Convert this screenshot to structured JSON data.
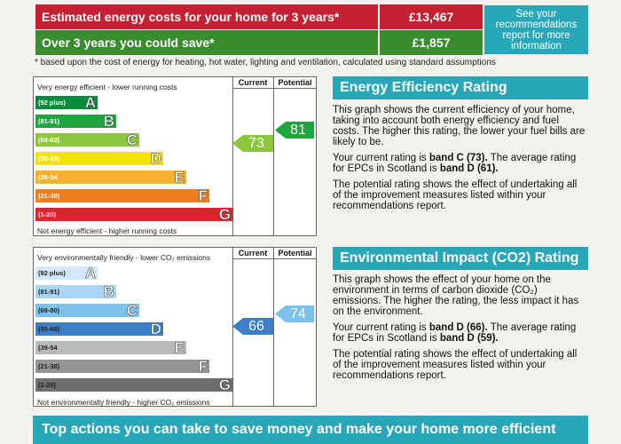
{
  "top": {
    "estimated_label": "Estimated energy costs for your home for 3 years*",
    "estimated_value": "£13,467",
    "save_label": "Over 3 years you could save*",
    "save_value": "£1,857",
    "see_recommendations": "See your recommendations report for more information",
    "footnote": "* based upon the cost of energy for heating, hot water, lighting and ventilation, calculated using standard assumptions"
  },
  "energy": {
    "top_caption": "Very energy efficient - lower running costs",
    "bottom_caption": "Not energy efficient - higher running costs",
    "col_current": "Current",
    "col_potential": "Potential",
    "bands": [
      {
        "range": "(92 plus)",
        "letter": "A",
        "color": "#0a8a3b"
      },
      {
        "range": "(81-91)",
        "letter": "B",
        "color": "#1ea53e"
      },
      {
        "range": "(69-80)",
        "letter": "C",
        "color": "#8dc63f"
      },
      {
        "range": "(55-68)",
        "letter": "D",
        "color": "#f3e400"
      },
      {
        "range": "(39-54",
        "letter": "E",
        "color": "#f6b030"
      },
      {
        "range": "(21-38)",
        "letter": "F",
        "color": "#ef7d22"
      },
      {
        "range": "(1-20)",
        "letter": "G",
        "color": "#e0232d"
      }
    ],
    "current": "73",
    "current_color": "#8dc63f",
    "potential": "81",
    "potential_color": "#1ea53e"
  },
  "environment": {
    "top_caption": "Very environmentally friendly - lower CO₂ emissions",
    "bottom_caption": "Not environmentally friendly - higher CO₂ emissions",
    "col_current": "Current",
    "col_potential": "Potential",
    "bands": [
      {
        "range": "(92 plus)",
        "letter": "A",
        "color": "#d2e8f8"
      },
      {
        "range": "(81-91)",
        "letter": "B",
        "color": "#a9d6f4"
      },
      {
        "range": "(69-80)",
        "letter": "C",
        "color": "#7cc0ec"
      },
      {
        "range": "(55-68)",
        "letter": "D",
        "color": "#3d7fc4"
      },
      {
        "range": "(39-54",
        "letter": "E",
        "color": "#b9b9b9"
      },
      {
        "range": "(21-38)",
        "letter": "F",
        "color": "#959595"
      },
      {
        "range": "(1-20)",
        "letter": "G",
        "color": "#6e6e6e"
      }
    ],
    "current": "66",
    "current_color": "#3d7fc4",
    "potential": "74",
    "potential_color": "#7cc0ec"
  },
  "eer_panel": {
    "title": "Energy Efficiency Rating",
    "p1": "This graph shows the current efficiency of your home, taking into account both energy efficiency and fuel costs. The higher this rating, the lower your fuel bills are likely to be.",
    "p2_prefix": "Your current rating is ",
    "p2_band": "band C (73).",
    "p2_mid": " The average rating for EPCs in Scotland is ",
    "p2_avg": "band D (61).",
    "p3": "The potential rating shows the effect of undertaking all of the improvement measures listed within your recommendations report."
  },
  "eir_panel": {
    "title": "Environmental Impact (CO2) Rating",
    "p1": "This graph shows the effect of your home on the environment in terms of carbon dioxide (CO₂) emissions. The higher the rating, the less impact it has on the environment.",
    "p2_prefix": "Your current rating is ",
    "p2_band": "band D (66).",
    "p2_mid": " The average rating for EPCs in Scotland is ",
    "p2_avg": "band D (59).",
    "p3": "The potential rating shows the effect of undertaking all of the improvement measures listed within your recommendations report."
  },
  "bottom": {
    "title": "Top actions you can take to save money and make your home more efficient"
  }
}
